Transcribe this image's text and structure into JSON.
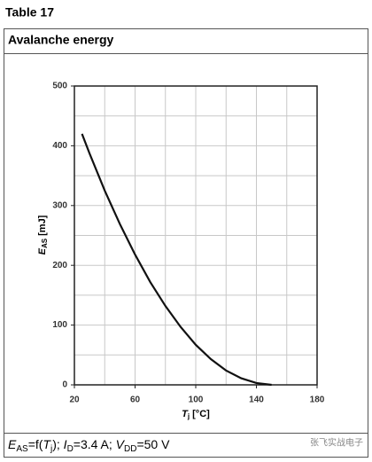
{
  "table_label": "Table 17",
  "header": "Avalanche energy",
  "footer": [
    "E",
    "AS",
    "=f(",
    "T",
    "j",
    "); ",
    "I",
    "D",
    "=3.4 A; ",
    "V",
    "DD",
    "=50 V"
  ],
  "watermark": "张飞实战电子",
  "chart_data": {
    "type": "line",
    "y_label": {
      "symbol": "E",
      "subscript": "AS",
      "unit": "[mJ]"
    },
    "x_label": {
      "symbol": "T",
      "subscript": "j",
      "unit": "[°C]"
    },
    "x": [
      25,
      30,
      40,
      50,
      60,
      70,
      80,
      90,
      100,
      110,
      120,
      130,
      140,
      150
    ],
    "values": [
      420,
      387,
      325,
      269,
      218,
      172,
      132,
      97,
      67,
      43,
      24,
      11,
      3,
      0
    ],
    "color": "#111111",
    "xlim": [
      20,
      180
    ],
    "xticks": [
      20,
      60,
      100,
      140,
      180
    ],
    "ylim": [
      0,
      500
    ],
    "yticks": [
      0,
      100,
      200,
      300,
      400,
      500
    ],
    "xgrid": [
      20,
      40,
      60,
      80,
      100,
      120,
      140,
      160,
      180
    ],
    "ygrid": [
      0,
      50,
      100,
      150,
      200,
      250,
      300,
      350,
      400,
      450,
      500
    ],
    "grid": true
  }
}
